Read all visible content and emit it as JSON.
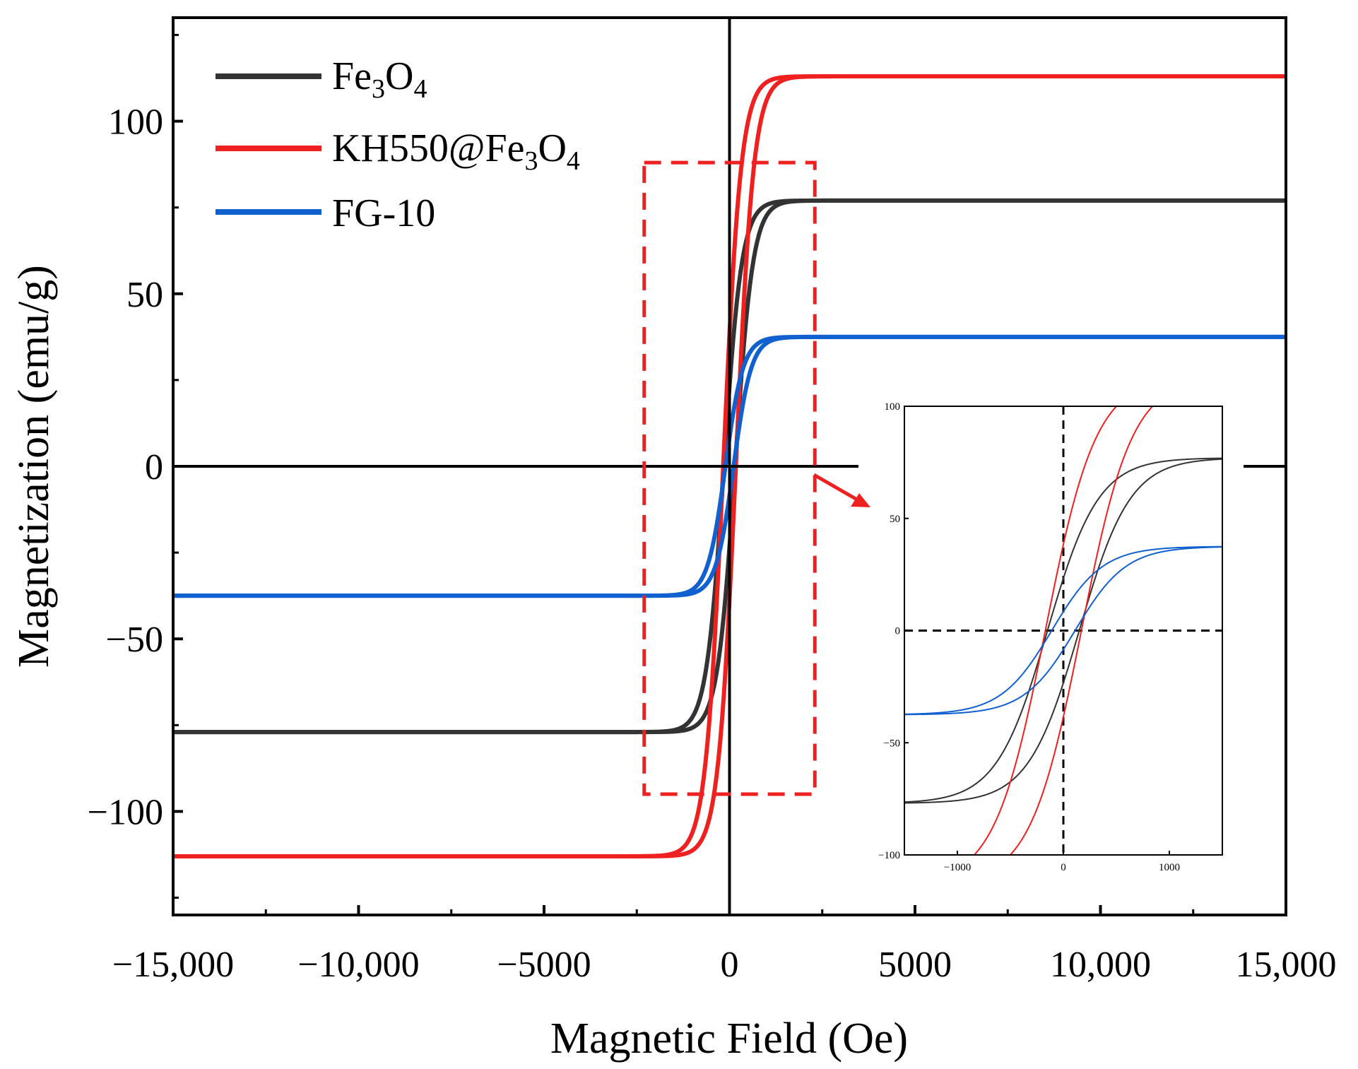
{
  "chart_data": [
    {
      "type": "line",
      "title": "",
      "xlabel": "Magnetic Field (Oe)",
      "ylabel": "Magnetization (emu/g)",
      "xlim": [
        -15000,
        15000
      ],
      "ylim": [
        -130,
        130
      ],
      "x_ticks": [
        {
          "value": -15000,
          "label": "−15,000"
        },
        {
          "value": -10000,
          "label": "−10,000"
        },
        {
          "value": -5000,
          "label": "−5000"
        },
        {
          "value": 0,
          "label": "0"
        },
        {
          "value": 5000,
          "label": "5000"
        },
        {
          "value": 10000,
          "label": "10,000"
        },
        {
          "value": 15000,
          "label": "15,000"
        }
      ],
      "y_ticks": [
        {
          "value": -100,
          "label": "−100"
        },
        {
          "value": -50,
          "label": "−50"
        },
        {
          "value": 0,
          "label": "0"
        },
        {
          "value": 50,
          "label": "50"
        },
        {
          "value": 100,
          "label": "100"
        }
      ],
      "legend": {
        "placement": "top-left",
        "entries": [
          {
            "series": "Fe3O4",
            "main": "Fe",
            "sub1": "3",
            "mid": "O",
            "sub2": "4"
          },
          {
            "series": "KH550@Fe3O4",
            "main": "KH550@Fe",
            "sub1": "3",
            "mid": "O",
            "sub2": "4"
          },
          {
            "series": "FG-10",
            "main": "FG-10",
            "sub1": "",
            "mid": "",
            "sub2": ""
          }
        ]
      },
      "series": [
        {
          "name": "Fe3O4",
          "color": "#333333",
          "ms": 77,
          "hc": 150,
          "a": 480
        },
        {
          "name": "KH550@Fe3O4",
          "color": "#ee2020",
          "ms": 113,
          "hc": 170,
          "a": 480
        },
        {
          "name": "FG-10",
          "color": "#1060d0",
          "ms": 37.5,
          "hc": 110,
          "a": 480
        }
      ],
      "zoom_box": {
        "x_range": [
          -2300,
          2300
        ],
        "y_range": [
          -95,
          88
        ],
        "color": "#ee2020"
      }
    },
    {
      "type": "line",
      "title": "",
      "xlabel": "",
      "ylabel": "",
      "xlim": [
        -1500,
        1500
      ],
      "ylim": [
        -100,
        100
      ],
      "x_ticks": [
        {
          "value": -1000,
          "label": "−1000"
        },
        {
          "value": 0,
          "label": "0"
        },
        {
          "value": 1000,
          "label": "1000"
        }
      ],
      "y_ticks": [
        {
          "value": -100,
          "label": "−100"
        },
        {
          "value": -50,
          "label": "−50"
        },
        {
          "value": 0,
          "label": "0"
        },
        {
          "value": 50,
          "label": "50"
        },
        {
          "value": 100,
          "label": "100"
        }
      ],
      "series_ref": [
        "Fe3O4",
        "KH550@Fe3O4",
        "FG-10"
      ]
    }
  ]
}
